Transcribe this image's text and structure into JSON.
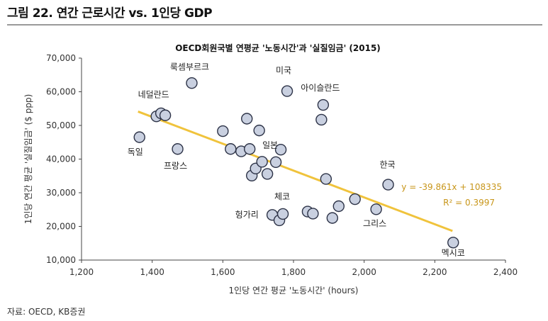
{
  "figure": {
    "title": "그림 22. 연간 근로시간 vs. 1인당 GDP",
    "source": "자료: OECD, KB증권"
  },
  "colors": {
    "marker_fill": "#c9d0e0",
    "marker_stroke": "#2d3347",
    "trend_line": "#f0c33c",
    "equation_text": "#c8961a",
    "axis": "#444444"
  },
  "chart_data": {
    "type": "scatter",
    "title": "OECD회원국별 연평균 '노동시간'과 '실질임금' (2015)",
    "xlabel": "1인당 연간 평균 '노동시간' (hours)",
    "ylabel": "1인당 연간 평균 '실질임금' ($ ppp)",
    "xlim": [
      1200,
      2400
    ],
    "ylim": [
      10000,
      70000
    ],
    "xticks": [
      "1,200",
      "1,400",
      "1,600",
      "1,800",
      "2,000",
      "2,200",
      "2,400"
    ],
    "yticks": [
      "10,000",
      "20,000",
      "30,000",
      "40,000",
      "50,000",
      "60,000",
      "70,000"
    ],
    "grid": false,
    "points": [
      {
        "x": 1364,
        "y": 46500
      },
      {
        "x": 1412,
        "y": 52700
      },
      {
        "x": 1425,
        "y": 53600
      },
      {
        "x": 1437,
        "y": 53000
      },
      {
        "x": 1472,
        "y": 43000
      },
      {
        "x": 1512,
        "y": 62600
      },
      {
        "x": 1600,
        "y": 48300
      },
      {
        "x": 1622,
        "y": 43000
      },
      {
        "x": 1652,
        "y": 42300
      },
      {
        "x": 1668,
        "y": 52000
      },
      {
        "x": 1676,
        "y": 43000
      },
      {
        "x": 1682,
        "y": 35100
      },
      {
        "x": 1693,
        "y": 37200
      },
      {
        "x": 1703,
        "y": 48500
      },
      {
        "x": 1711,
        "y": 39200
      },
      {
        "x": 1726,
        "y": 35600
      },
      {
        "x": 1740,
        "y": 23400
      },
      {
        "x": 1750,
        "y": 39100
      },
      {
        "x": 1760,
        "y": 21800
      },
      {
        "x": 1764,
        "y": 42800
      },
      {
        "x": 1770,
        "y": 23700
      },
      {
        "x": 1782,
        "y": 60200
      },
      {
        "x": 1840,
        "y": 24400
      },
      {
        "x": 1855,
        "y": 23800
      },
      {
        "x": 1879,
        "y": 51700
      },
      {
        "x": 1884,
        "y": 56100
      },
      {
        "x": 1892,
        "y": 34100
      },
      {
        "x": 1910,
        "y": 22500
      },
      {
        "x": 1928,
        "y": 26000
      },
      {
        "x": 1974,
        "y": 28100
      },
      {
        "x": 2034,
        "y": 25100
      },
      {
        "x": 2068,
        "y": 32400
      },
      {
        "x": 2252,
        "y": 15200
      }
    ],
    "trendline": {
      "x": [
        1360,
        2250
      ],
      "y": [
        54124,
        18647
      ],
      "equation": "y = -39.861x + 108335",
      "r2": "R² = 0.3997"
    },
    "annotations": [
      {
        "text": "룩셈부르크",
        "x": 1506,
        "y": 66500
      },
      {
        "text": "미국",
        "x": 1772,
        "y": 65500
      },
      {
        "text": "아이슬란드",
        "x": 1876,
        "y": 60300
      },
      {
        "text": "네덜란드",
        "x": 1404,
        "y": 58300
      },
      {
        "text": "독일",
        "x": 1352,
        "y": 41300
      },
      {
        "text": "프랑스",
        "x": 1466,
        "y": 37200
      },
      {
        "text": "일본",
        "x": 1734,
        "y": 43300
      },
      {
        "text": "한국",
        "x": 2066,
        "y": 37500
      },
      {
        "text": "체코",
        "x": 1768,
        "y": 28000
      },
      {
        "text": "헝가리",
        "x": 1668,
        "y": 22600
      },
      {
        "text": "그리스",
        "x": 2030,
        "y": 20000
      },
      {
        "text": "멕시코",
        "x": 2252,
        "y": 11300
      }
    ]
  }
}
